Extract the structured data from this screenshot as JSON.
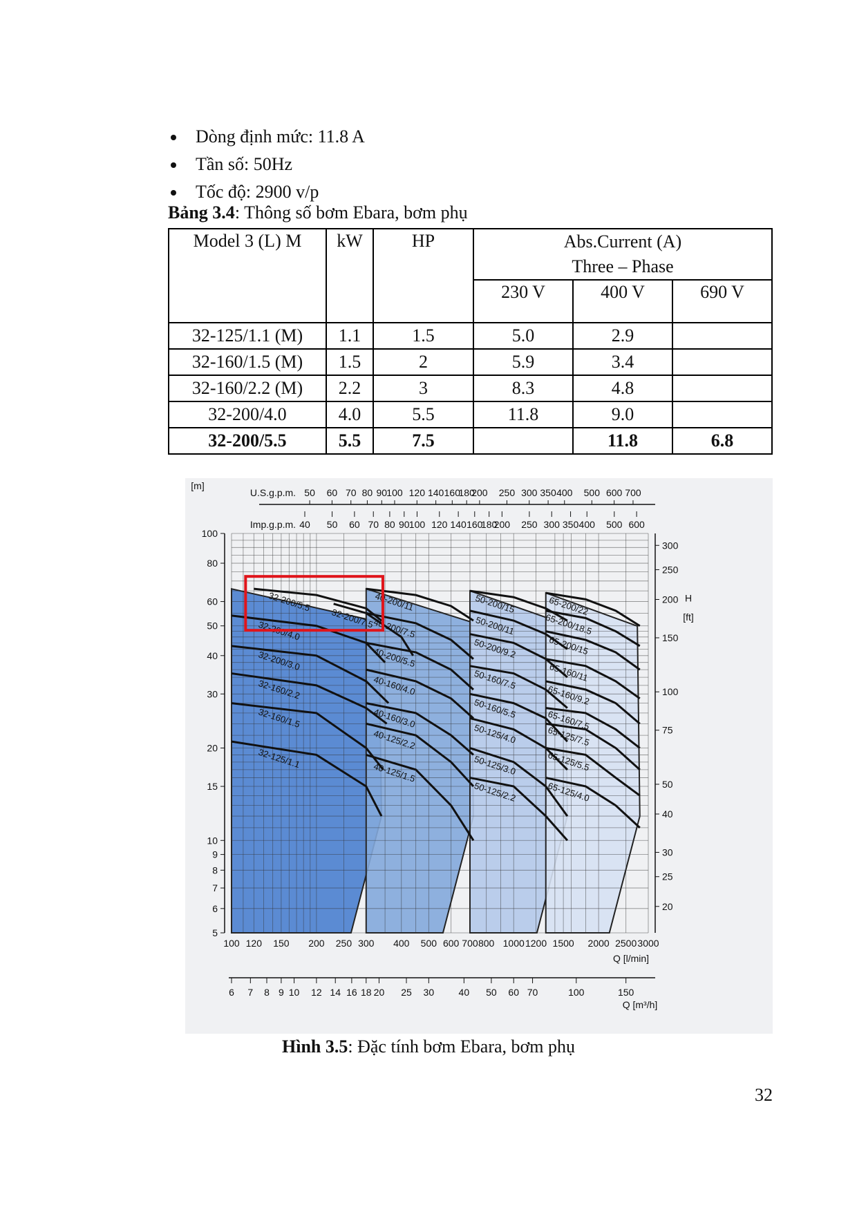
{
  "bullets": [
    "Dòng định mức: 11.8 A",
    "Tần số: 50Hz",
    "Tốc độ: 2900 v/p"
  ],
  "table_caption": {
    "label": "Bảng 3.4",
    "text": ": Thông số bơm Ebara, bơm phụ"
  },
  "table": {
    "headers": {
      "model": "Model 3 (L) M",
      "kw": "kW",
      "hp": "HP",
      "current_line1": "Abs.Current (A)",
      "current_line2": "Three – Phase",
      "v230": "230 V",
      "v400": "400 V",
      "v690": "690 V"
    },
    "rows": [
      {
        "model": "32-125/1.1 (M)",
        "kw": "1.1",
        "hp": "1.5",
        "v230": "5.0",
        "v400": "2.9",
        "v690": ""
      },
      {
        "model": "32-160/1.5 (M)",
        "kw": "1.5",
        "hp": "2",
        "v230": "5.9",
        "v400": "3.4",
        "v690": ""
      },
      {
        "model": "32-160/2.2 (M)",
        "kw": "2.2",
        "hp": "3",
        "v230": "8.3",
        "v400": "4.8",
        "v690": ""
      },
      {
        "model": "32-200/4.0",
        "kw": "4.0",
        "hp": "5.5",
        "v230": "11.8",
        "v400": "9.0",
        "v690": ""
      },
      {
        "model": "32-200/5.5",
        "kw": "5.5",
        "hp": "7.5",
        "v230": "",
        "v400": "11.8",
        "v690": "6.8"
      }
    ]
  },
  "chart_data": {
    "type": "line",
    "top_axes": {
      "usgpm_label": "U.S.g.p.m.",
      "usgpm_ticks": [
        "50",
        "60",
        "70",
        "80",
        "90",
        "100",
        "120",
        "140",
        "160",
        "180",
        "200",
        "250",
        "300",
        "350",
        "400",
        "500",
        "600",
        "700"
      ],
      "impgpm_label": "Imp.g.p.m.",
      "impgpm_ticks": [
        "40",
        "50",
        "60",
        "70",
        "80",
        "90",
        "100",
        "120",
        "140",
        "160",
        "180",
        "200",
        "250",
        "300",
        "350",
        "400",
        "500",
        "600"
      ]
    },
    "y_left": {
      "label_top": "H",
      "label_unit": "[m]",
      "ticks": [
        "100",
        "80",
        "60",
        "50",
        "40",
        "30",
        "20",
        "15",
        "10",
        "9",
        "8",
        "7",
        "6",
        "5"
      ],
      "range": [
        5,
        100
      ],
      "scale": "log"
    },
    "y_right": {
      "label_top": "H",
      "label_unit": "[ft]",
      "ticks": [
        "300",
        "250",
        "200",
        "150",
        "100",
        "75",
        "50",
        "40",
        "30",
        "25",
        "20"
      ]
    },
    "x_bottom": {
      "ticks": [
        "100",
        "120",
        "150",
        "200",
        "250",
        "300",
        "400",
        "500",
        "600",
        "700",
        "800",
        "1000",
        "1200",
        "1500",
        "2000",
        "2500",
        "3000"
      ],
      "label": "Q [l/min]",
      "range": [
        100,
        3000
      ],
      "scale": "log"
    },
    "x_m3h": {
      "ticks": [
        "6",
        "7",
        "8",
        "9",
        "10",
        "12",
        "14",
        "16",
        "18",
        "20",
        "25",
        "30",
        "40",
        "50",
        "60",
        "70",
        "100",
        "150"
      ],
      "label": "Q [m³/h]"
    },
    "highlight": "32-200/5.5",
    "series": [
      {
        "name": "32-200/5.5",
        "group": 1,
        "q": [
          120,
          200,
          300,
          340
        ],
        "h": [
          66,
          63,
          57,
          52
        ]
      },
      {
        "name": "32-200/4.0",
        "group": 1,
        "q": [
          100,
          200,
          300,
          350
        ],
        "h": [
          54,
          50,
          44,
          38
        ]
      },
      {
        "name": "32-200/3.0",
        "group": 1,
        "q": [
          100,
          200,
          300,
          360
        ],
        "h": [
          43,
          40,
          33,
          28
        ]
      },
      {
        "name": "32-160/2.2",
        "group": 1,
        "q": [
          100,
          200,
          300,
          355
        ],
        "h": [
          35,
          32,
          27,
          24
        ]
      },
      {
        "name": "32-160/1.5",
        "group": 1,
        "q": [
          100,
          200,
          300,
          345
        ],
        "h": [
          28,
          26,
          20,
          17
        ]
      },
      {
        "name": "32-125/1.1",
        "group": 1,
        "q": [
          100,
          200,
          300,
          340
        ],
        "h": [
          21,
          19,
          15,
          12
        ]
      },
      {
        "name": "40-200/11",
        "group": 2,
        "q": [
          300,
          450,
          600,
          720
        ],
        "h": [
          66,
          63,
          58,
          52
        ]
      },
      {
        "name": "32-200/7.5",
        "group": 2,
        "q": [
          230,
          300,
          400,
          440
        ],
        "h": [
          59,
          55,
          46,
          40
        ]
      },
      {
        "name": "40-200/7.5",
        "group": 2,
        "q": [
          300,
          450,
          600,
          720
        ],
        "h": [
          55,
          51,
          45,
          39
        ]
      },
      {
        "name": "40-200/5.5",
        "group": 2,
        "q": [
          300,
          450,
          600,
          720
        ],
        "h": [
          44,
          41,
          36,
          31
        ]
      },
      {
        "name": "40-160/4.0",
        "group": 2,
        "q": [
          300,
          450,
          600,
          720
        ],
        "h": [
          36,
          33,
          29,
          25
        ]
      },
      {
        "name": "40-160/3.0",
        "group": 2,
        "q": [
          300,
          450,
          600,
          720
        ],
        "h": [
          28,
          26,
          22,
          19
        ]
      },
      {
        "name": "40-125/2.2",
        "group": 2,
        "q": [
          300,
          450,
          600,
          720
        ],
        "h": [
          24,
          22,
          18,
          15
        ]
      },
      {
        "name": "40-125/1.5",
        "group": 2,
        "q": [
          300,
          450,
          600,
          720
        ],
        "h": [
          19,
          17,
          13,
          10
        ]
      },
      {
        "name": "50-200/15",
        "group": 3,
        "q": [
          700,
          1000,
          1300,
          1550
        ],
        "h": [
          65,
          62,
          57,
          52
        ]
      },
      {
        "name": "50-200/11",
        "group": 3,
        "q": [
          700,
          1000,
          1300,
          1550
        ],
        "h": [
          56,
          52,
          47,
          42
        ]
      },
      {
        "name": "50-200/9.2",
        "group": 3,
        "q": [
          700,
          1000,
          1300,
          1550
        ],
        "h": [
          47,
          44,
          39,
          34
        ]
      },
      {
        "name": "50-160/7.5",
        "group": 3,
        "q": [
          700,
          1000,
          1300,
          1550
        ],
        "h": [
          37,
          35,
          31,
          27
        ]
      },
      {
        "name": "50-160/5.5",
        "group": 3,
        "q": [
          700,
          1000,
          1300,
          1550
        ],
        "h": [
          30,
          28,
          25,
          21
        ]
      },
      {
        "name": "50-125/4.0",
        "group": 3,
        "q": [
          700,
          1000,
          1300,
          1550
        ],
        "h": [
          25,
          23,
          20,
          17
        ]
      },
      {
        "name": "50-125/3.0",
        "group": 3,
        "q": [
          700,
          1000,
          1300,
          1550
        ],
        "h": [
          20,
          18,
          15,
          12
        ]
      },
      {
        "name": "50-125/2.2",
        "group": 3,
        "q": [
          700,
          1000,
          1300,
          1550
        ],
        "h": [
          16,
          15,
          12,
          10
        ]
      },
      {
        "name": "65-200/22",
        "group": 4,
        "q": [
          1300,
          1800,
          2300,
          2800
        ],
        "h": [
          64,
          61,
          56,
          50
        ]
      },
      {
        "name": "65-200/18.5",
        "group": 4,
        "q": [
          1300,
          1800,
          2300,
          2800
        ],
        "h": [
          56,
          53,
          48,
          43
        ]
      },
      {
        "name": "65-200/15",
        "group": 4,
        "q": [
          1300,
          1800,
          2300,
          2800
        ],
        "h": [
          48,
          45,
          41,
          36
        ]
      },
      {
        "name": "65-160/11",
        "group": 4,
        "q": [
          1300,
          1800,
          2300,
          2800
        ],
        "h": [
          39,
          37,
          33,
          29
        ]
      },
      {
        "name": "65-160/9.2",
        "group": 4,
        "q": [
          1300,
          1800,
          2300,
          2800
        ],
        "h": [
          33,
          31,
          28,
          24
        ]
      },
      {
        "name": "65-160/7.5",
        "group": 4,
        "q": [
          1300,
          1800,
          2300,
          2800
        ],
        "h": [
          27,
          26,
          23,
          20
        ]
      },
      {
        "name": "65-125/7.5",
        "group": 4,
        "q": [
          1300,
          1800,
          2300,
          2800
        ],
        "h": [
          24,
          23,
          20,
          17
        ]
      },
      {
        "name": "65-125/5.5",
        "group": 4,
        "q": [
          1300,
          1800,
          2300,
          2800
        ],
        "h": [
          20,
          19,
          16,
          14
        ]
      },
      {
        "name": "65-125/4.0",
        "group": 4,
        "q": [
          1300,
          1800,
          2300,
          2800
        ],
        "h": [
          16,
          15,
          13,
          11
        ]
      }
    ],
    "colors": {
      "group1": "#4a7fcf",
      "group2": "#83a8dc",
      "group3": "#b4c9ea",
      "group4": "#d6e1f3",
      "highlight": "#e0151b"
    }
  },
  "figure_caption": {
    "label": "Hình 3.5",
    "text": ": Đặc tính bơm Ebara, bơm phụ"
  },
  "page_number": "32"
}
